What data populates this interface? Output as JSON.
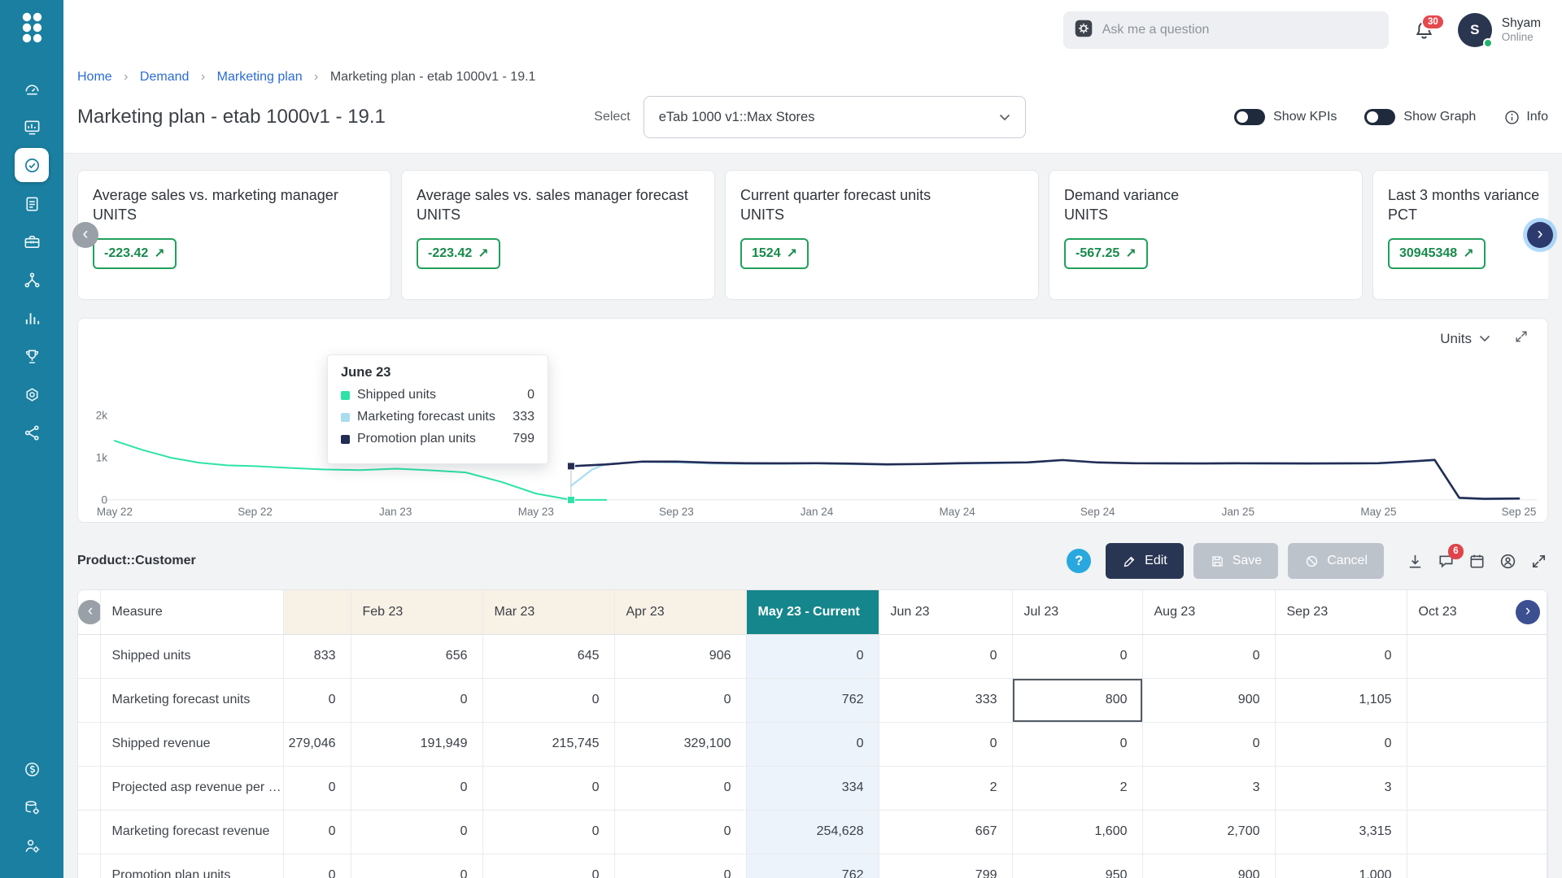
{
  "colors": {
    "sidebar": "#1a7fa0",
    "accent_teal": "#15868c",
    "kpi_green": "#22a05c",
    "alert_red": "#e5484d",
    "edit_navy": "#293653",
    "series_shipped": "#2de3a7",
    "series_marketing": "#aadcf0",
    "series_promotion": "#222c55"
  },
  "icons": {
    "chevron_left": "‹",
    "chevron_right": "›",
    "breadcrumb_separator": "›",
    "help": "?",
    "trend_up": "↗"
  },
  "sidebar": {
    "icons": [
      "dashboard",
      "analytics",
      "planning",
      "tasks",
      "toolbox",
      "network",
      "bar-chart",
      "awards",
      "ai",
      "share"
    ],
    "active": "planning",
    "bottom_icons": [
      "currency",
      "data-management",
      "user-admin"
    ]
  },
  "topbar": {
    "search_placeholder": "Ask me a question",
    "notification_count": "30",
    "user_initial": "S",
    "user_name": "Shyam",
    "user_status": "Online"
  },
  "breadcrumb": {
    "items": [
      "Home",
      "Demand",
      "Marketing plan"
    ],
    "current": "Marketing plan - etab 1000v1 - 19.1"
  },
  "page": {
    "title": "Marketing plan - etab 1000v1 - 19.1",
    "select_label": "Select",
    "select_value": "eTab 1000 v1::Max Stores",
    "show_kpis_label": "Show KPIs",
    "show_graph_label": "Show Graph",
    "info_label": "Info"
  },
  "kpis": [
    {
      "title": "Average sales vs. marketing manager",
      "unit": "UNITS",
      "value": "-223.42"
    },
    {
      "title": "Average sales vs. sales manager forecast",
      "unit": "UNITS",
      "value": "-223.42"
    },
    {
      "title": "Current quarter forecast units",
      "unit": "UNITS",
      "value": "1524"
    },
    {
      "title": "Demand variance",
      "unit": "UNITS",
      "value": "-567.25"
    },
    {
      "title": "Last 3 months variance",
      "unit": "PCT",
      "value": "30945348"
    }
  ],
  "chart": {
    "selector_value": "Units",
    "y_ticks": [
      {
        "label": "2k",
        "value": 2000
      },
      {
        "label": "1k",
        "value": 1000
      },
      {
        "label": "0",
        "value": 0
      }
    ],
    "x_ticks": [
      "May 22",
      "Sep 22",
      "Jan 23",
      "May 23",
      "Sep 23",
      "Jan 24",
      "May 24",
      "Sep 24",
      "Jan 25",
      "May 25",
      "Sep 25"
    ],
    "tooltip": {
      "title": "June 23",
      "rows": [
        {
          "label": "Shipped units",
          "value": "0",
          "color": "#2de3a7"
        },
        {
          "label": "Marketing forecast units",
          "value": "333",
          "color": "#aadcf0"
        },
        {
          "label": "Promotion plan units",
          "value": "799",
          "color": "#222c55"
        }
      ]
    },
    "series": [
      {
        "name": "Shipped units",
        "color": "#2de3a7",
        "width": 2,
        "points": [
          [
            0,
            1400
          ],
          [
            0.8,
            1180
          ],
          [
            1.6,
            1000
          ],
          [
            2.4,
            880
          ],
          [
            3.2,
            820
          ],
          [
            4,
            800
          ],
          [
            5,
            755
          ],
          [
            6,
            720
          ],
          [
            7,
            705
          ],
          [
            8,
            740
          ],
          [
            9,
            700
          ],
          [
            10,
            650
          ],
          [
            11,
            430
          ],
          [
            12,
            150
          ],
          [
            13,
            0
          ],
          [
            14,
            0
          ]
        ]
      },
      {
        "name": "Marketing forecast units",
        "color": "#aadcf0",
        "width": 2.2,
        "points": [
          [
            13,
            333
          ],
          [
            13.6,
            720
          ],
          [
            14,
            850
          ],
          [
            15,
            900
          ],
          [
            16,
            885
          ],
          [
            17,
            862
          ],
          [
            18,
            850
          ],
          [
            20,
            858
          ],
          [
            22,
            833
          ],
          [
            24,
            858
          ],
          [
            25,
            868
          ],
          [
            26,
            880
          ],
          [
            27,
            938
          ],
          [
            28,
            882
          ],
          [
            30,
            856
          ],
          [
            32,
            858
          ],
          [
            34,
            854
          ],
          [
            36,
            860
          ],
          [
            37,
            905
          ],
          [
            37.6,
            935
          ],
          [
            38.3,
            40
          ],
          [
            39,
            18
          ],
          [
            40,
            26
          ]
        ]
      },
      {
        "name": "Promotion plan units",
        "color": "#222c55",
        "width": 2.6,
        "points": [
          [
            13,
            799
          ],
          [
            14,
            838
          ],
          [
            15,
            905
          ],
          [
            16,
            908
          ],
          [
            17,
            880
          ],
          [
            18,
            868
          ],
          [
            19,
            866
          ],
          [
            20,
            870
          ],
          [
            21,
            858
          ],
          [
            22,
            842
          ],
          [
            23,
            850
          ],
          [
            24,
            868
          ],
          [
            25,
            878
          ],
          [
            26,
            888
          ],
          [
            27,
            945
          ],
          [
            28,
            886
          ],
          [
            29,
            868
          ],
          [
            30,
            866
          ],
          [
            31,
            864
          ],
          [
            32,
            868
          ],
          [
            33,
            866
          ],
          [
            34,
            864
          ],
          [
            35,
            866
          ],
          [
            36,
            870
          ],
          [
            37,
            915
          ],
          [
            37.6,
            948
          ],
          [
            38.3,
            50
          ],
          [
            39,
            25
          ],
          [
            40,
            32
          ]
        ]
      }
    ],
    "markers": [
      {
        "x": 13,
        "y": 799,
        "color": "#222c55"
      },
      {
        "x": 13,
        "y": 0,
        "color": "#2de3a7"
      }
    ],
    "guide_x": 13
  },
  "grid": {
    "section_label": "Product::Customer",
    "toolbar": {
      "edit": "Edit",
      "save": "Save",
      "cancel": "Cancel",
      "comments_badge": "6"
    },
    "columns": [
      {
        "label": "Measure",
        "type": "measure"
      },
      {
        "label": "",
        "type": "past"
      },
      {
        "label": "Feb 23",
        "type": "past"
      },
      {
        "label": "Mar 23",
        "type": "past"
      },
      {
        "label": "Apr 23",
        "type": "past"
      },
      {
        "label": "May 23 - Current",
        "type": "current"
      },
      {
        "label": "Jun 23",
        "type": "future"
      },
      {
        "label": "Jul 23",
        "type": "future"
      },
      {
        "label": "Aug 23",
        "type": "future"
      },
      {
        "label": "Sep 23",
        "type": "future"
      },
      {
        "label": "Oct 23",
        "type": "future"
      }
    ],
    "rows": [
      {
        "measure": "Shipped units",
        "values": [
          "833",
          "656",
          "645",
          "906",
          "0",
          "0",
          "0",
          "0",
          "0",
          ""
        ]
      },
      {
        "measure": "Marketing forecast units",
        "values": [
          "0",
          "0",
          "0",
          "0",
          "762",
          "333",
          "800",
          "900",
          "1,105",
          ""
        ]
      },
      {
        "measure": "Shipped revenue",
        "values": [
          "279,046",
          "191,949",
          "215,745",
          "329,100",
          "0",
          "0",
          "0",
          "0",
          "0",
          ""
        ]
      },
      {
        "measure": "Projected asp revenue per u...",
        "values": [
          "0",
          "0",
          "0",
          "0",
          "334",
          "2",
          "2",
          "3",
          "3",
          ""
        ]
      },
      {
        "measure": "Marketing forecast revenue",
        "values": [
          "0",
          "0",
          "0",
          "0",
          "254,628",
          "667",
          "1,600",
          "2,700",
          "3,315",
          ""
        ]
      },
      {
        "measure": "Promotion plan units",
        "values": [
          "0",
          "0",
          "0",
          "0",
          "762",
          "799",
          "950",
          "900",
          "1,000",
          ""
        ]
      }
    ],
    "selected_cell": {
      "row": 1,
      "col": 7
    }
  }
}
